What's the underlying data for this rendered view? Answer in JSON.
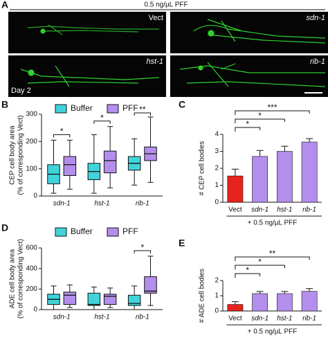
{
  "panel_a": {
    "panel": "A",
    "title": "0.5 ng/µL PFF",
    "labels": [
      "Vect",
      "sdn-1",
      "hst-1",
      "rib-1",
      "Day 2"
    ]
  },
  "chart_data": [
    {
      "type": "box",
      "panel": "B",
      "ylabel": [
        "CEP cell body area",
        "(% of corresponding Vect)"
      ],
      "categories": [
        "sdn-1",
        "hst-1",
        "rib-1"
      ],
      "ylim": [
        0,
        300
      ],
      "yticks": [
        0,
        100,
        200,
        300
      ],
      "series": [
        {
          "name": "Buffer",
          "color": "#40d3dc",
          "min": [
            10,
            10,
            40
          ],
          "q1": [
            45,
            60,
            95
          ],
          "median": [
            80,
            90,
            120
          ],
          "q3": [
            115,
            120,
            145
          ],
          "max": [
            205,
            225,
            210
          ]
        },
        {
          "name": "PFF",
          "color": "#b48eec",
          "min": [
            25,
            30,
            50
          ],
          "q1": [
            75,
            85,
            130
          ],
          "median": [
            115,
            130,
            155
          ],
          "q3": [
            145,
            165,
            180
          ],
          "max": [
            205,
            255,
            290
          ]
        }
      ],
      "significance": [
        "*",
        "*",
        "**"
      ],
      "legend": "top"
    },
    {
      "type": "bar",
      "panel": "C",
      "ylabel": [
        "# CEP cell bodies"
      ],
      "xlabel": "+ 0.5 ng/µL PFF",
      "categories": [
        "Vect",
        "sdn-1",
        "hst-1",
        "rib-1"
      ],
      "values": [
        1.55,
        2.7,
        3.0,
        3.55
      ],
      "errors": [
        0.4,
        0.35,
        0.3,
        0.2
      ],
      "colors": [
        "#e8221c",
        "#b48eec",
        "#b48eec",
        "#b48eec"
      ],
      "ylim": [
        0,
        4
      ],
      "yticks": [
        0,
        1,
        2,
        3,
        4
      ],
      "significance": [
        "*",
        "*",
        "***"
      ]
    },
    {
      "type": "box",
      "panel": "D",
      "ylabel": [
        "ADE cell body area",
        "(% of corresponding Vect)"
      ],
      "categories": [
        "sdn-1",
        "hst-1",
        "rib-1"
      ],
      "ylim": [
        0,
        600
      ],
      "yticks": [
        0,
        200,
        400,
        600
      ],
      "series": [
        {
          "name": "Buffer",
          "color": "#40d3dc",
          "min": [
            0,
            0,
            0
          ],
          "q1": [
            50,
            40,
            40
          ],
          "median": [
            100,
            50,
            60
          ],
          "q3": [
            150,
            160,
            140
          ],
          "max": [
            230,
            220,
            230
          ]
        },
        {
          "name": "PFF",
          "color": "#b48eec",
          "min": [
            20,
            20,
            40
          ],
          "q1": [
            50,
            50,
            160
          ],
          "median": [
            140,
            130,
            180
          ],
          "q3": [
            170,
            150,
            320
          ],
          "max": [
            240,
            210,
            520
          ]
        }
      ],
      "significance": [
        null,
        null,
        "*"
      ],
      "legend": "top"
    },
    {
      "type": "bar",
      "panel": "E",
      "ylabel": [
        "# ADE cell bodies"
      ],
      "xlabel": "+ 0.5 ng/µL PFF",
      "categories": [
        "Vect",
        "sdn-1",
        "hst-1",
        "rib-1"
      ],
      "values": [
        0.43,
        1.14,
        1.14,
        1.29
      ],
      "errors": [
        0.18,
        0.14,
        0.14,
        0.18
      ],
      "colors": [
        "#e8221c",
        "#b48eec",
        "#b48eec",
        "#b48eec"
      ],
      "ylim": [
        0,
        2
      ],
      "yticks": [
        0,
        1,
        2
      ],
      "significance": [
        "*",
        "*",
        "**"
      ]
    }
  ]
}
